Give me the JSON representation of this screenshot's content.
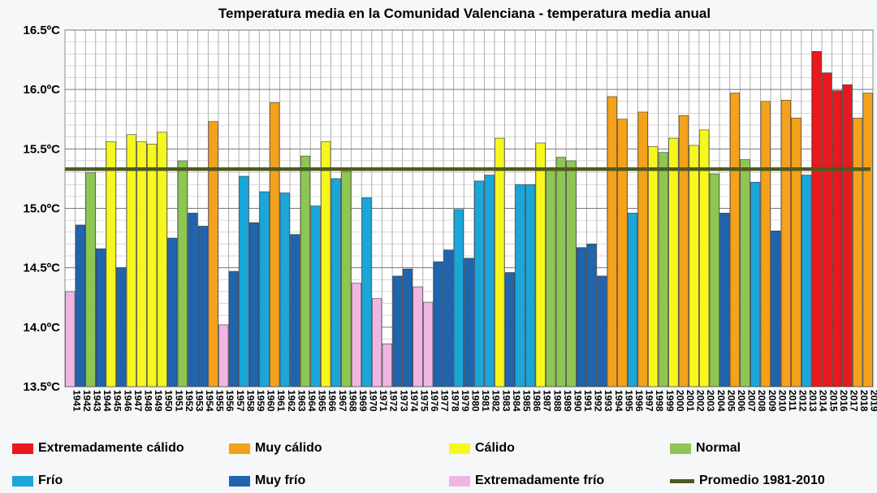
{
  "chart_data": {
    "type": "bar",
    "title": "Temperatura media en la Comunidad Valenciana - temperatura media anual",
    "ylim": [
      13.5,
      16.5
    ],
    "y_ticks": [
      "13.5ºC",
      "14.0ºC",
      "14.5ºC",
      "15.0ºC",
      "15.5ºC",
      "16.0ºC",
      "16.5ºC"
    ],
    "y_tick_values": [
      13.5,
      14.0,
      14.5,
      15.0,
      15.5,
      16.0,
      16.5
    ],
    "grid": true,
    "reference_line": {
      "label": "Promedio 1981-2010",
      "value": 15.33,
      "color": "#4d5b1f"
    },
    "categories": [
      "1941",
      "1942",
      "1943",
      "1944",
      "1945",
      "1946",
      "1947",
      "1948",
      "1949",
      "1950",
      "1951",
      "1952",
      "1953",
      "1954",
      "1955",
      "1956",
      "1957",
      "1958",
      "1959",
      "1960",
      "1961",
      "1962",
      "1963",
      "1964",
      "1965",
      "1966",
      "1967",
      "1968",
      "1969",
      "1970",
      "1971",
      "1972",
      "1973",
      "1974",
      "1975",
      "1976",
      "1977",
      "1978",
      "1979",
      "1980",
      "1981",
      "1982",
      "1983",
      "1984",
      "1985",
      "1986",
      "1987",
      "1988",
      "1989",
      "1990",
      "1991",
      "1992",
      "1993",
      "1994",
      "1995",
      "1996",
      "1997",
      "1998",
      "1999",
      "2000",
      "2001",
      "2002",
      "2003",
      "2004",
      "2005",
      "2006",
      "2007",
      "2008",
      "2009",
      "2010",
      "2011",
      "2012",
      "2013",
      "2014",
      "2015",
      "2016",
      "2017",
      "2018",
      "2019"
    ],
    "values": [
      14.3,
      14.86,
      15.3,
      14.66,
      15.56,
      14.5,
      15.62,
      15.56,
      15.54,
      15.64,
      14.75,
      15.4,
      14.96,
      14.85,
      15.73,
      14.02,
      14.47,
      15.27,
      14.88,
      15.14,
      15.89,
      15.13,
      14.78,
      15.44,
      15.02,
      15.56,
      15.25,
      15.31,
      14.37,
      15.09,
      14.24,
      13.86,
      14.43,
      14.49,
      14.34,
      14.21,
      14.55,
      14.65,
      14.99,
      14.58,
      15.23,
      15.28,
      15.59,
      14.46,
      15.2,
      15.2,
      15.55,
      15.32,
      15.43,
      15.4,
      14.67,
      14.7,
      14.43,
      15.94,
      15.75,
      14.96,
      15.81,
      15.52,
      15.47,
      15.59,
      15.78,
      15.53,
      15.66,
      15.29,
      14.96,
      15.97,
      15.41,
      15.22,
      15.9,
      14.81,
      15.91,
      15.76,
      15.28,
      16.32,
      16.14,
      15.99,
      16.04,
      15.76,
      15.97
    ],
    "classes": [
      "EF",
      "MF",
      "N",
      "MF",
      "C",
      "MF",
      "C",
      "C",
      "C",
      "C",
      "MF",
      "N",
      "MF",
      "MF",
      "MC",
      "EF",
      "MF",
      "F",
      "MF",
      "F",
      "MC",
      "F",
      "MF",
      "N",
      "F",
      "C",
      "F",
      "N",
      "EF",
      "F",
      "EF",
      "EF",
      "MF",
      "MF",
      "EF",
      "EF",
      "MF",
      "MF",
      "F",
      "MF",
      "F",
      "F",
      "C",
      "MF",
      "F",
      "F",
      "C",
      "N",
      "N",
      "N",
      "MF",
      "MF",
      "MF",
      "MC",
      "MC",
      "F",
      "MC",
      "C",
      "N",
      "C",
      "MC",
      "C",
      "C",
      "N",
      "MF",
      "MC",
      "N",
      "F",
      "MC",
      "MF",
      "MC",
      "MC",
      "F",
      "EC",
      "EC",
      "EC",
      "EC",
      "MC",
      "MC"
    ],
    "legend": [
      {
        "key": "EC",
        "label": "Extremadamente cálido",
        "color": "#e8191c"
      },
      {
        "key": "MC",
        "label": "Muy cálido",
        "color": "#f4a11b"
      },
      {
        "key": "C",
        "label": "Cálido",
        "color": "#f7f71d"
      },
      {
        "key": "N",
        "label": "Normal",
        "color": "#8dc653"
      },
      {
        "key": "F",
        "label": "Frío",
        "color": "#1ba6da"
      },
      {
        "key": "MF",
        "label": "Muy frío",
        "color": "#1f64ad"
      },
      {
        "key": "EF",
        "label": "Extremadamente frío",
        "color": "#efb5e3"
      },
      {
        "key": "AVG",
        "label": "Promedio 1981-2010",
        "color": "#4d5b1f"
      }
    ],
    "legend_placement": "bottom"
  }
}
